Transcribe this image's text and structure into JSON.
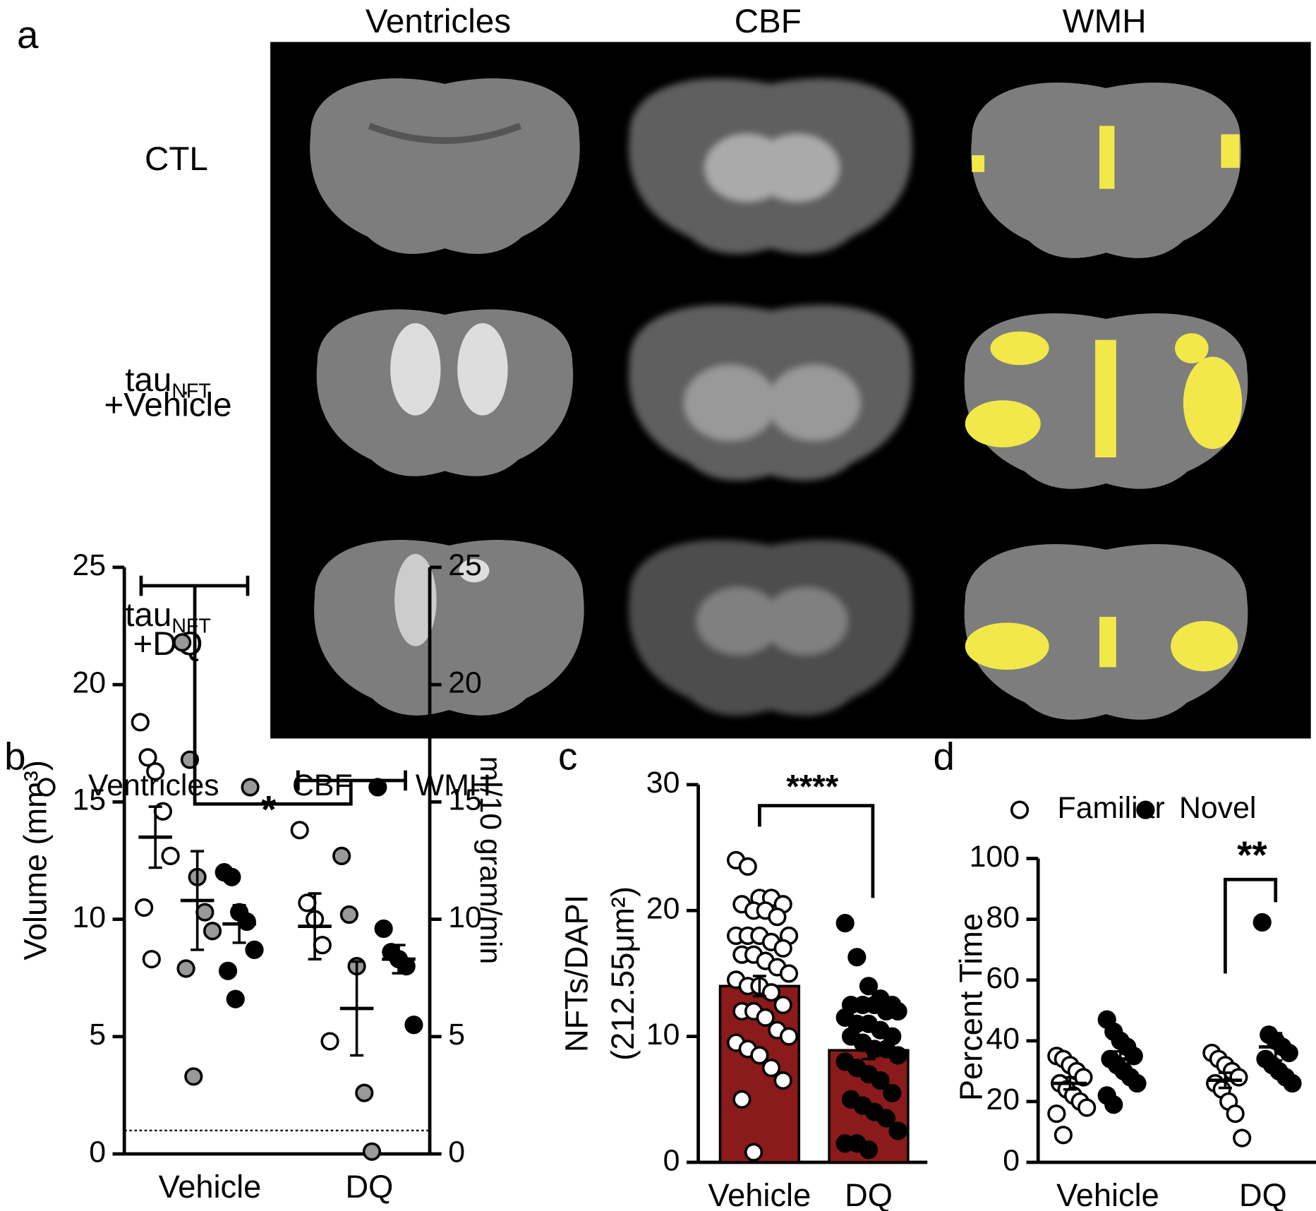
{
  "panel_labels": [
    "a",
    "b",
    "c",
    "d"
  ],
  "mri": {
    "columns": [
      "Ventricles",
      "CBF",
      "WMH"
    ],
    "rows": [
      {
        "main": "CTL"
      },
      {
        "main": "tau",
        "sub": "NFT",
        "line2": "+Vehicle"
      },
      {
        "main": "tau",
        "sub": "NFT",
        "line2": "+DQ"
      }
    ]
  },
  "chart_data": [
    {
      "type": "grouped_scatter",
      "ylabel": "Volume (mm³)",
      "y2label": "ml/10 gram/min",
      "categories": [
        "Vehicle",
        "DQ"
      ],
      "ylim": [
        0,
        25
      ],
      "yticks": [
        0,
        5,
        10,
        15,
        20,
        25
      ],
      "y2lim": [
        0,
        25
      ],
      "y2ticks": [
        0,
        5,
        10,
        15,
        20,
        25
      ],
      "reference_line": 1,
      "annotation": "*",
      "series": [
        {
          "name": "Ventricles",
          "color": "#ffffff",
          "points": [
            [
              18.4,
              16.9,
              16.3,
              14.6,
              12.7,
              10.5,
              8.3
            ],
            [
              13.8,
              10.7,
              10.0,
              8.9,
              4.8
            ]
          ],
          "mean": [
            13.5,
            9.7
          ],
          "sem": [
            1.3,
            1.4
          ]
        },
        {
          "name": "CBF",
          "color": "#999999",
          "axis": "y2",
          "points": [
            [
              21.8,
              16.8,
              11.8,
              10.3,
              9.5,
              7.9,
              3.3
            ],
            [
              12.7,
              10.2,
              8.0,
              2.6,
              0.1
            ]
          ],
          "mean": [
            10.8,
            6.2
          ],
          "sem": [
            2.1,
            2.0
          ]
        },
        {
          "name": "WMH",
          "color": "#000000",
          "points": [
            [
              12.0,
              11.8,
              10.3,
              9.9,
              8.7,
              7.8,
              6.6
            ],
            [
              9.6,
              8.6,
              8.3,
              8.0,
              5.5
            ]
          ],
          "mean": [
            9.8,
            8.3
          ],
          "sem": [
            0.8,
            0.6
          ]
        }
      ]
    },
    {
      "type": "bar_points",
      "ylabel": [
        "NFTs/DAPI",
        "(212.55μm²)"
      ],
      "categories": [
        "Vehicle",
        "DQ"
      ],
      "ylim": [
        0,
        30
      ],
      "yticks": [
        0,
        10,
        20,
        30
      ],
      "color": "#8b1a1a",
      "annotation": "****",
      "values": [
        14.0,
        8.9
      ],
      "sem": [
        0.8,
        0.7
      ],
      "point_colors": [
        "#ffffff",
        "#000000"
      ],
      "points": [
        [
          24,
          23.5,
          21,
          21,
          20.5,
          20.5,
          20,
          20,
          19.5,
          18,
          18,
          18,
          18,
          17.5,
          17,
          16.5,
          16.5,
          16,
          15.5,
          15,
          14.5,
          14,
          14,
          13.5,
          12.5,
          12,
          12,
          11.5,
          10.5,
          10,
          9.5,
          9,
          8.5,
          7.5,
          6.5,
          5,
          0.8
        ],
        [
          19,
          16.3,
          14,
          13,
          12.5,
          12.5,
          12.5,
          12.5,
          12,
          12,
          11.5,
          11,
          11,
          10.5,
          10,
          10,
          9.5,
          9,
          9,
          8.5,
          8,
          7.5,
          7,
          6.5,
          5.5,
          5,
          4.5,
          4,
          3.5,
          2.5,
          1.5,
          1.5,
          1
        ]
      ]
    },
    {
      "type": "grouped_scatter",
      "ylabel": "Percent Time",
      "categories": [
        "Vehicle",
        "DQ"
      ],
      "ylim": [
        0,
        100
      ],
      "yticks": [
        0,
        20,
        40,
        60,
        80,
        100
      ],
      "annotation": "**",
      "series": [
        {
          "name": "Familiar",
          "color": "#ffffff",
          "points": [
            [
              35,
              34,
              32,
              30,
              28,
              26,
              24,
              22,
              20,
              18,
              16,
              9
            ],
            [
              36,
              34,
              32,
              30,
              28,
              26,
              24,
              20,
              16,
              8
            ]
          ],
          "mean": [
            26,
            27
          ],
          "sem": [
            2,
            2.5
          ]
        },
        {
          "name": "Novel",
          "color": "#000000",
          "points": [
            [
              47,
              43,
              40,
              38,
              35,
              34,
              32,
              30,
              28,
              26,
              22,
              19
            ],
            [
              79,
              42,
              40,
              38,
              36,
              34,
              32,
              30,
              28,
              26
            ]
          ],
          "mean": [
            34,
            38
          ],
          "sem": [
            2.5,
            4.5
          ]
        }
      ]
    }
  ]
}
